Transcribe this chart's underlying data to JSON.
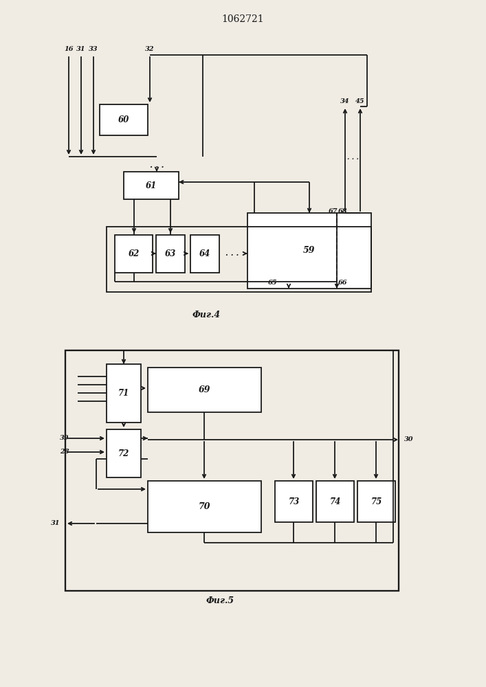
{
  "title": "1062721",
  "fig4_caption": "Фиг.4",
  "fig5_caption": "Фиг.5",
  "bg_color": "#f0ece4",
  "line_color": "#1a1a1a",
  "box_color": "#ffffff",
  "lw": 1.3
}
